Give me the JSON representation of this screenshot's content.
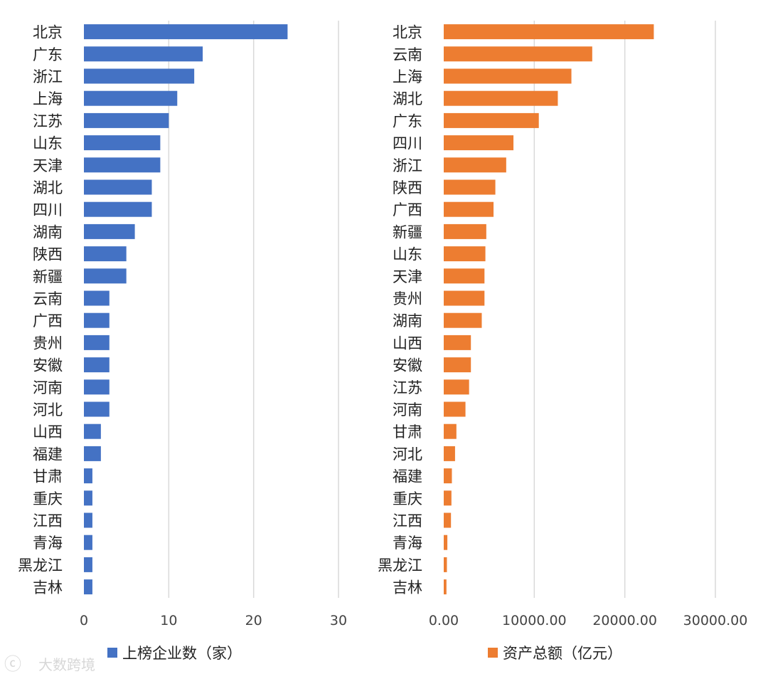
{
  "chart_data": [
    {
      "type": "bar",
      "orientation": "horizontal",
      "color": "#4472C4",
      "categories": [
        "北京",
        "广东",
        "浙江",
        "上海",
        "江苏",
        "山东",
        "天津",
        "湖北",
        "四川",
        "湖南",
        "陕西",
        "新疆",
        "云南",
        "广西",
        "贵州",
        "安徽",
        "河南",
        "河北",
        "山西",
        "福建",
        "甘肃",
        "重庆",
        "江西",
        "青海",
        "黑龙江",
        "吉林"
      ],
      "values": [
        24,
        14,
        13,
        11,
        10,
        9,
        9,
        8,
        8,
        6,
        5,
        5,
        3,
        3,
        3,
        3,
        3,
        3,
        2,
        2,
        1,
        1,
        1,
        1,
        1,
        1
      ],
      "xlim": [
        0,
        30
      ],
      "ticks": [
        0,
        10,
        20,
        30
      ],
      "tick_labels": [
        "0",
        "10",
        "20",
        "30"
      ],
      "legend": "上榜企业数（家）",
      "grid": true
    },
    {
      "type": "bar",
      "orientation": "horizontal",
      "color": "#ED7D31",
      "categories": [
        "北京",
        "云南",
        "上海",
        "湖北",
        "广东",
        "四川",
        "浙江",
        "陕西",
        "广西",
        "新疆",
        "山东",
        "天津",
        "贵州",
        "湖南",
        "山西",
        "安徽",
        "江苏",
        "河南",
        "甘肃",
        "河北",
        "福建",
        "重庆",
        "江西",
        "青海",
        "黑龙江",
        "吉林"
      ],
      "values": [
        23200,
        16400,
        14100,
        12600,
        10500,
        7700,
        6900,
        5700,
        5500,
        4700,
        4600,
        4500,
        4500,
        4200,
        3000,
        3000,
        2800,
        2400,
        1400,
        1250,
        900,
        850,
        800,
        400,
        350,
        300
      ],
      "xlim": [
        0,
        30000
      ],
      "ticks": [
        0,
        10000,
        20000,
        30000
      ],
      "tick_labels": [
        "0.00",
        "10000.00",
        "20000.00",
        "30000.00"
      ],
      "legend": "资产总额（亿元）",
      "grid": true
    }
  ],
  "watermark": "大数跨境"
}
